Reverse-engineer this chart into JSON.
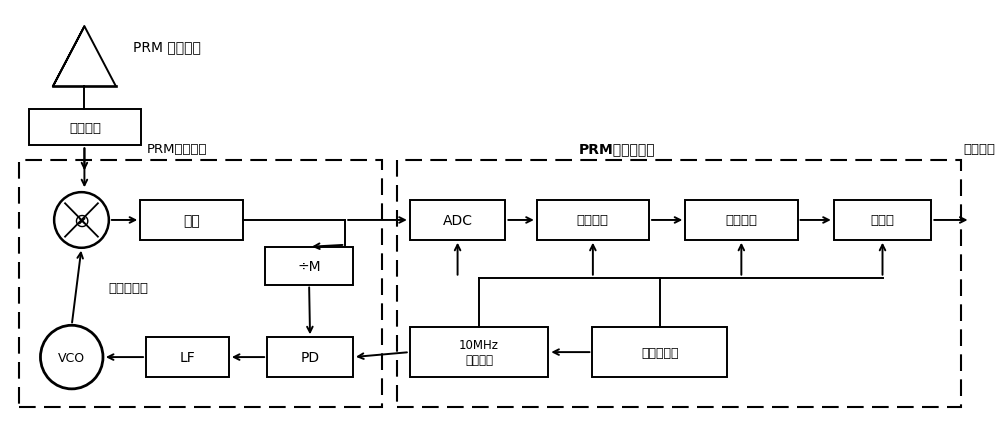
{
  "bg_color": "#ffffff",
  "label_rf": "PRM 射频信号",
  "label_IF": "PRM中频信号",
  "label_digital": "PRM数字解调器",
  "label_info": "信息序列",
  "label_analog": "模拟锁相环",
  "label_preamp": "前置放大",
  "label_zhongfang": "中放",
  "label_divM": "÷M",
  "label_VCO": "VCO",
  "label_LF": "LF",
  "label_PD": "PD",
  "label_ADC": "ADC",
  "label_filter": "冲击滤波",
  "label_detect": "检测判决",
  "label_bitsync": "位同步",
  "label_ref": "10MHz\n参考晶振",
  "label_clk": "时钟发生器"
}
